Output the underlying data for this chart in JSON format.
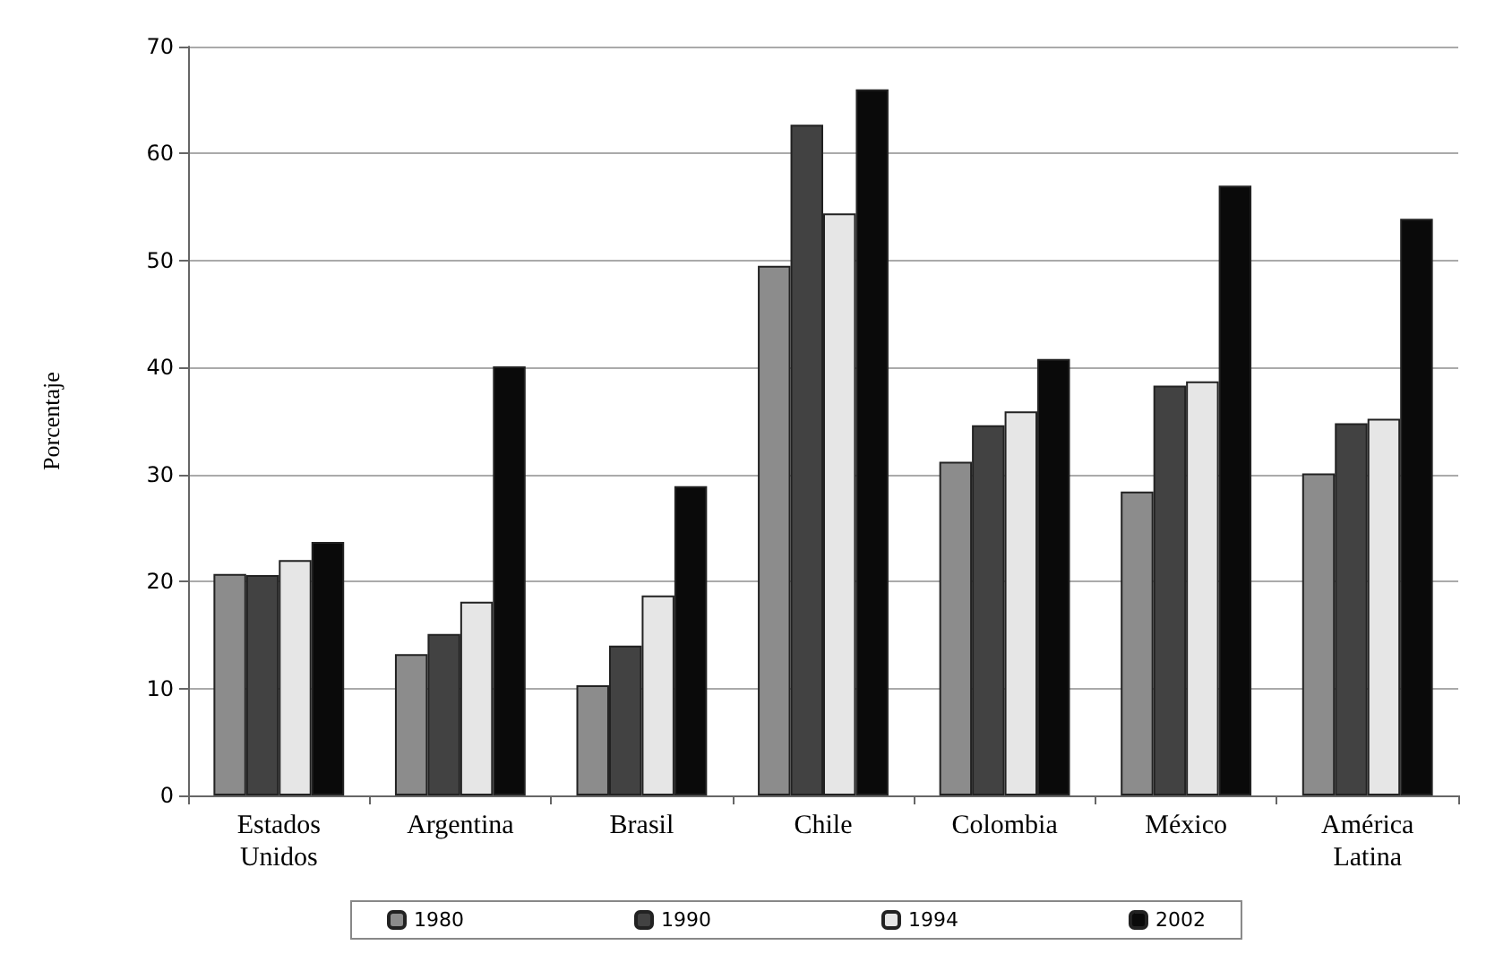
{
  "chart_data": {
    "type": "bar",
    "ylabel": "Porcentaje",
    "categories": [
      "Estados\nUnidos",
      "Argentina",
      "Brasil",
      "Chile",
      "Colombia",
      "México",
      "América\nLatina"
    ],
    "series": [
      {
        "name": "1980",
        "color": "#8c8c8c",
        "values": [
          20.7,
          13.2,
          10.3,
          49.5,
          31.2,
          28.4,
          30.1
        ]
      },
      {
        "name": "1990",
        "color": "#424242",
        "values": [
          20.6,
          15.1,
          14,
          62.7,
          34.6,
          38.3,
          34.8
        ]
      },
      {
        "name": "1994",
        "color": "#e6e6e6",
        "values": [
          22,
          18.1,
          18.7,
          54.4,
          35.9,
          38.7,
          35.2
        ]
      },
      {
        "name": "2002",
        "color": "#0a0a0a",
        "values": [
          23.7,
          40.1,
          28.9,
          66,
          40.8,
          57,
          53.9
        ]
      }
    ],
    "ylim": [
      0,
      70
    ],
    "yticks": [
      0,
      10,
      20,
      30,
      40,
      50,
      60,
      70
    ],
    "grid": "y",
    "legend": "bottom"
  }
}
